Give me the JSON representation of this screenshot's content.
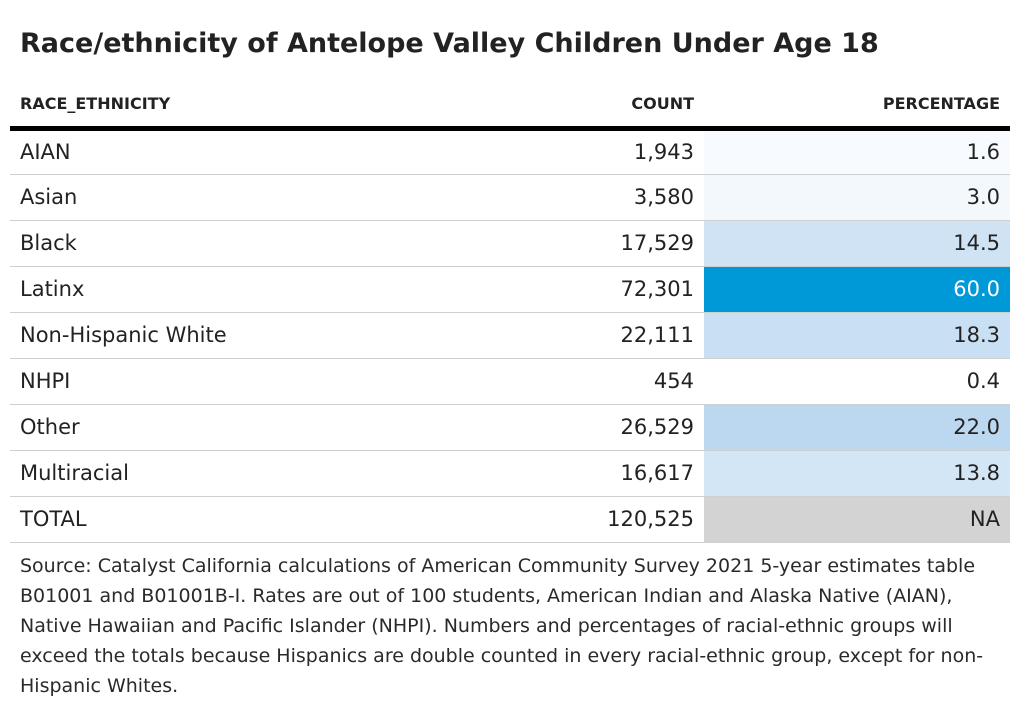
{
  "title": "Race/ethnicity of Antelope Valley Children Under Age 18",
  "chart_data": {
    "type": "table",
    "title": "Race/ethnicity of Antelope Valley Children Under Age 18",
    "columns": [
      "RACE_ETHNICITY",
      "COUNT",
      "PERCENTAGE"
    ],
    "rows": [
      {
        "race_ethnicity": "AIAN",
        "count": "1,943",
        "percentage": "1.6",
        "pct_value": 1.6,
        "cell_color": "#f7fbff",
        "text_color": "#222222"
      },
      {
        "race_ethnicity": "Asian",
        "count": "3,580",
        "percentage": "3.0",
        "pct_value": 3.0,
        "cell_color": "#f3f8fd",
        "text_color": "#222222"
      },
      {
        "race_ethnicity": "Black",
        "count": "17,529",
        "percentage": "14.5",
        "pct_value": 14.5,
        "cell_color": "#cfe3f5",
        "text_color": "#222222"
      },
      {
        "race_ethnicity": "Latinx",
        "count": "72,301",
        "percentage": "60.0",
        "pct_value": 60.0,
        "cell_color": "#0099d8",
        "text_color": "#ffffff"
      },
      {
        "race_ethnicity": "Non-Hispanic White",
        "count": "22,111",
        "percentage": "18.3",
        "pct_value": 18.3,
        "cell_color": "#c9e0f4",
        "text_color": "#222222"
      },
      {
        "race_ethnicity": "NHPI",
        "count": "454",
        "percentage": "0.4",
        "pct_value": 0.4,
        "cell_color": "#ffffff",
        "text_color": "#222222"
      },
      {
        "race_ethnicity": "Other",
        "count": "26,529",
        "percentage": "22.0",
        "pct_value": 22.0,
        "cell_color": "#bcd8f1",
        "text_color": "#222222"
      },
      {
        "race_ethnicity": "Multiracial",
        "count": "16,617",
        "percentage": "13.8",
        "pct_value": 13.8,
        "cell_color": "#d3e6f6",
        "text_color": "#222222"
      },
      {
        "race_ethnicity": "TOTAL",
        "count": "120,525",
        "percentage": "NA",
        "pct_value": null,
        "cell_color": "#d3d3d3",
        "text_color": "#222222"
      }
    ]
  },
  "source": "Source: Catalyst California calculations of American Community Survey 2021 5-year estimates table B01001 and B01001B-I. Rates are out of 100 students, American Indian and Alaska Native (AIAN), Native Hawaiian and Pacific Islander (NHPI). Numbers and percentages of racial-ethnic groups will exceed the totals because Hispanics are double counted in every racial-ethnic group, except for non-Hispanic Whites."
}
